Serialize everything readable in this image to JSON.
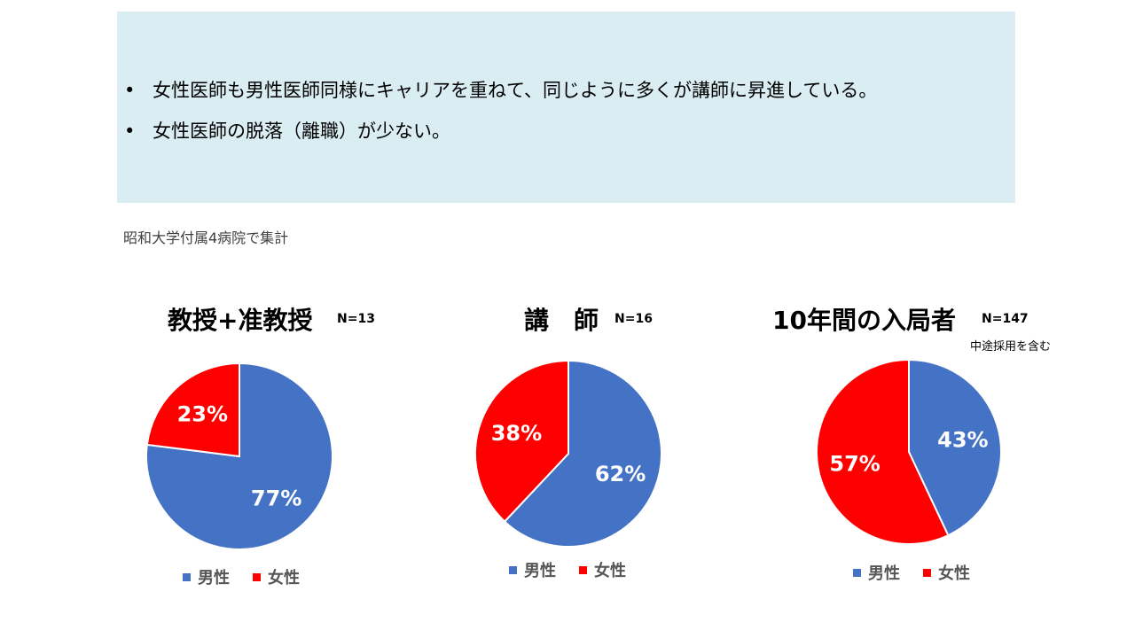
{
  "callout": {
    "bullets": [
      "女性医師も男性医師同様にキャリアを重ねて、同じように多くが講師に昇進している。",
      "女性医師の脱落（離職）が少ない。"
    ]
  },
  "source_note": "昭和大学付属4病院で集計",
  "colors": {
    "male": "#4472C4",
    "female": "#FF0000"
  },
  "chart_data": [
    {
      "type": "pie",
      "title": "教授+准教授",
      "n_label": "N=13",
      "note": "",
      "categories": [
        "男性",
        "女性"
      ],
      "values": [
        77,
        23
      ],
      "data_labels": [
        "77%",
        "23%"
      ],
      "legend": [
        "男性",
        "女性"
      ],
      "legend_position": "bottom"
    },
    {
      "type": "pie",
      "title": "講　師",
      "n_label": "N=16",
      "note": "",
      "categories": [
        "男性",
        "女性"
      ],
      "values": [
        62,
        38
      ],
      "data_labels": [
        "62%",
        "38%"
      ],
      "legend": [
        "男性",
        "女性"
      ],
      "legend_position": "bottom"
    },
    {
      "type": "pie",
      "title": "10年間の入局者",
      "n_label": "N=147",
      "note": "中途採用を含む",
      "categories": [
        "男性",
        "女性"
      ],
      "values": [
        43,
        57
      ],
      "data_labels": [
        "43%",
        "57%"
      ],
      "legend": [
        "男性",
        "女性"
      ],
      "legend_position": "bottom"
    }
  ]
}
